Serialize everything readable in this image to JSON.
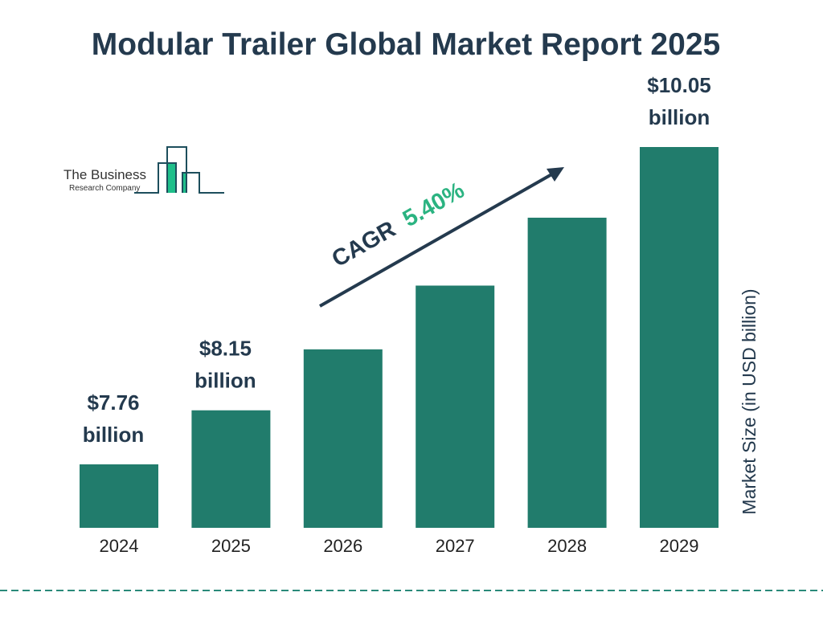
{
  "chart_data": {
    "type": "bar",
    "title": "Modular Trailer Global Market Report 2025",
    "ylabel": "Market Size (in USD billion)",
    "xlabel": "",
    "categories": [
      "2024",
      "2025",
      "2026",
      "2027",
      "2028",
      "2029"
    ],
    "values": [
      7.76,
      8.15,
      8.59,
      9.05,
      9.54,
      10.05
    ],
    "data_labels": [
      {
        "index": 0,
        "line1": "$7.76",
        "line2": "billion"
      },
      {
        "index": 1,
        "line1": "$8.15",
        "line2": "billion"
      },
      {
        "index": 5,
        "line1": "$10.05",
        "line2": "billion"
      }
    ],
    "annotation": {
      "prefix": "CAGR",
      "value": "5.40%"
    },
    "grid": false,
    "legend": "none"
  },
  "logo": {
    "line1": "The Business",
    "line2": "Research Company"
  },
  "colors": {
    "bar": "#217c6c",
    "title": "#243a4e",
    "cagr_value": "#2bb381",
    "logo_green": "#1fbf8a",
    "logo_line": "#1d4e5c",
    "dashed_line": "#2a8a7a"
  }
}
